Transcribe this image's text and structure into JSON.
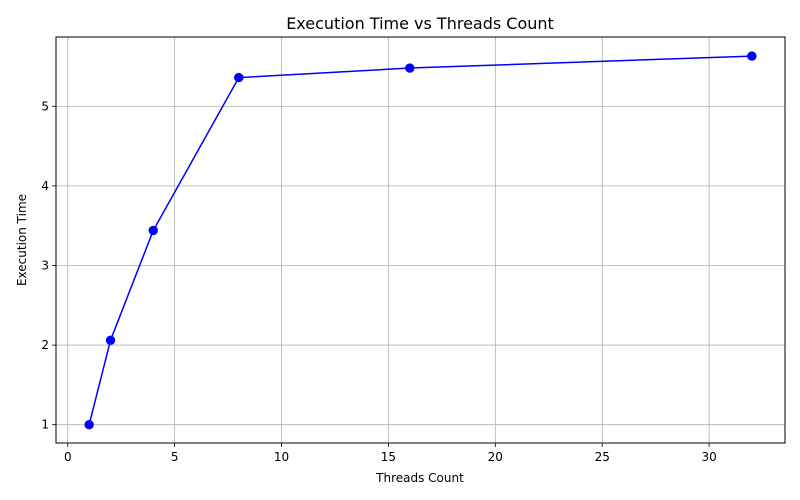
{
  "chart_data": {
    "type": "line",
    "title": "Execution Time vs Threads Count",
    "xlabel": "Threads Count",
    "ylabel": "Execution Time",
    "xlim": [
      -0.55,
      33.55
    ],
    "ylim": [
      0.77,
      5.87
    ],
    "xticks": [
      0,
      5,
      10,
      15,
      20,
      25,
      30
    ],
    "yticks": [
      1,
      2,
      3,
      4,
      5
    ],
    "grid": true,
    "series": [
      {
        "x": [
          1,
          2,
          4,
          8,
          16,
          32
        ],
        "y": [
          1.0,
          2.06,
          3.44,
          5.36,
          5.48,
          5.63
        ],
        "color": "#0000ff",
        "marker": "circle"
      }
    ]
  }
}
